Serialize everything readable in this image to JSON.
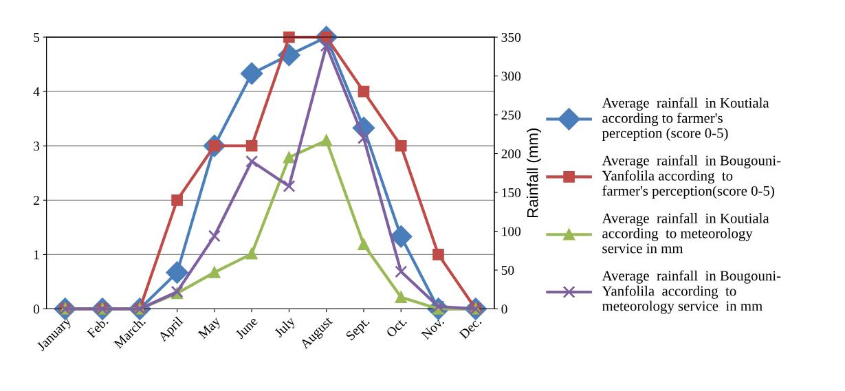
{
  "chart_data": {
    "type": "line",
    "y2label": "Rainfall (mm)",
    "categories": [
      "January",
      "Feb.",
      "March.",
      "April",
      "May",
      "June",
      "July",
      "August",
      "Sept.",
      "Oct.",
      "Nov.",
      "Dec."
    ],
    "series": [
      {
        "name": "Average  rainfall  in Koutiala\naccording to farmer's\nperception (score 0-5)",
        "color": "#4a7ebb",
        "marker": "diamond",
        "values": [
          0,
          0,
          0,
          0.67,
          3,
          4.33,
          4.67,
          5,
          3.33,
          1.33,
          0,
          0
        ]
      },
      {
        "name": "Average  rainfall  in Bougouni-\nYanfolila according  to\nfarmer's perception(score 0-5)",
        "color": "#be4b48",
        "marker": "square",
        "values": [
          0,
          0,
          0,
          2,
          3,
          3,
          5,
          5,
          4,
          3,
          1,
          0
        ]
      },
      {
        "name": "Average  rainfall  in Koutiala\naccording  to meteorology\nservice in mm",
        "color": "#98b954",
        "marker": "triangle",
        "axis": "y2",
        "values": [
          0,
          0,
          0,
          20,
          47,
          71,
          195,
          217,
          83,
          15,
          0,
          0
        ]
      },
      {
        "name": "Average  rainfall  in Bougouni-\nYanfolila  according  to\nmeteorology service  in mm",
        "color": "#7d60a0",
        "marker": "cross",
        "axis": "y2",
        "values": [
          0,
          0,
          0,
          22,
          94,
          190,
          158,
          339,
          220,
          48,
          3,
          0
        ]
      }
    ],
    "ylim": [
      0,
      5
    ],
    "yticks": [
      0,
      1,
      2,
      3,
      4,
      5
    ],
    "y2lim": [
      0,
      350
    ],
    "y2ticks": [
      0,
      50,
      100,
      150,
      200,
      250,
      300,
      350
    ],
    "grid": "y",
    "legend": "right",
    "line_style": "solid"
  }
}
